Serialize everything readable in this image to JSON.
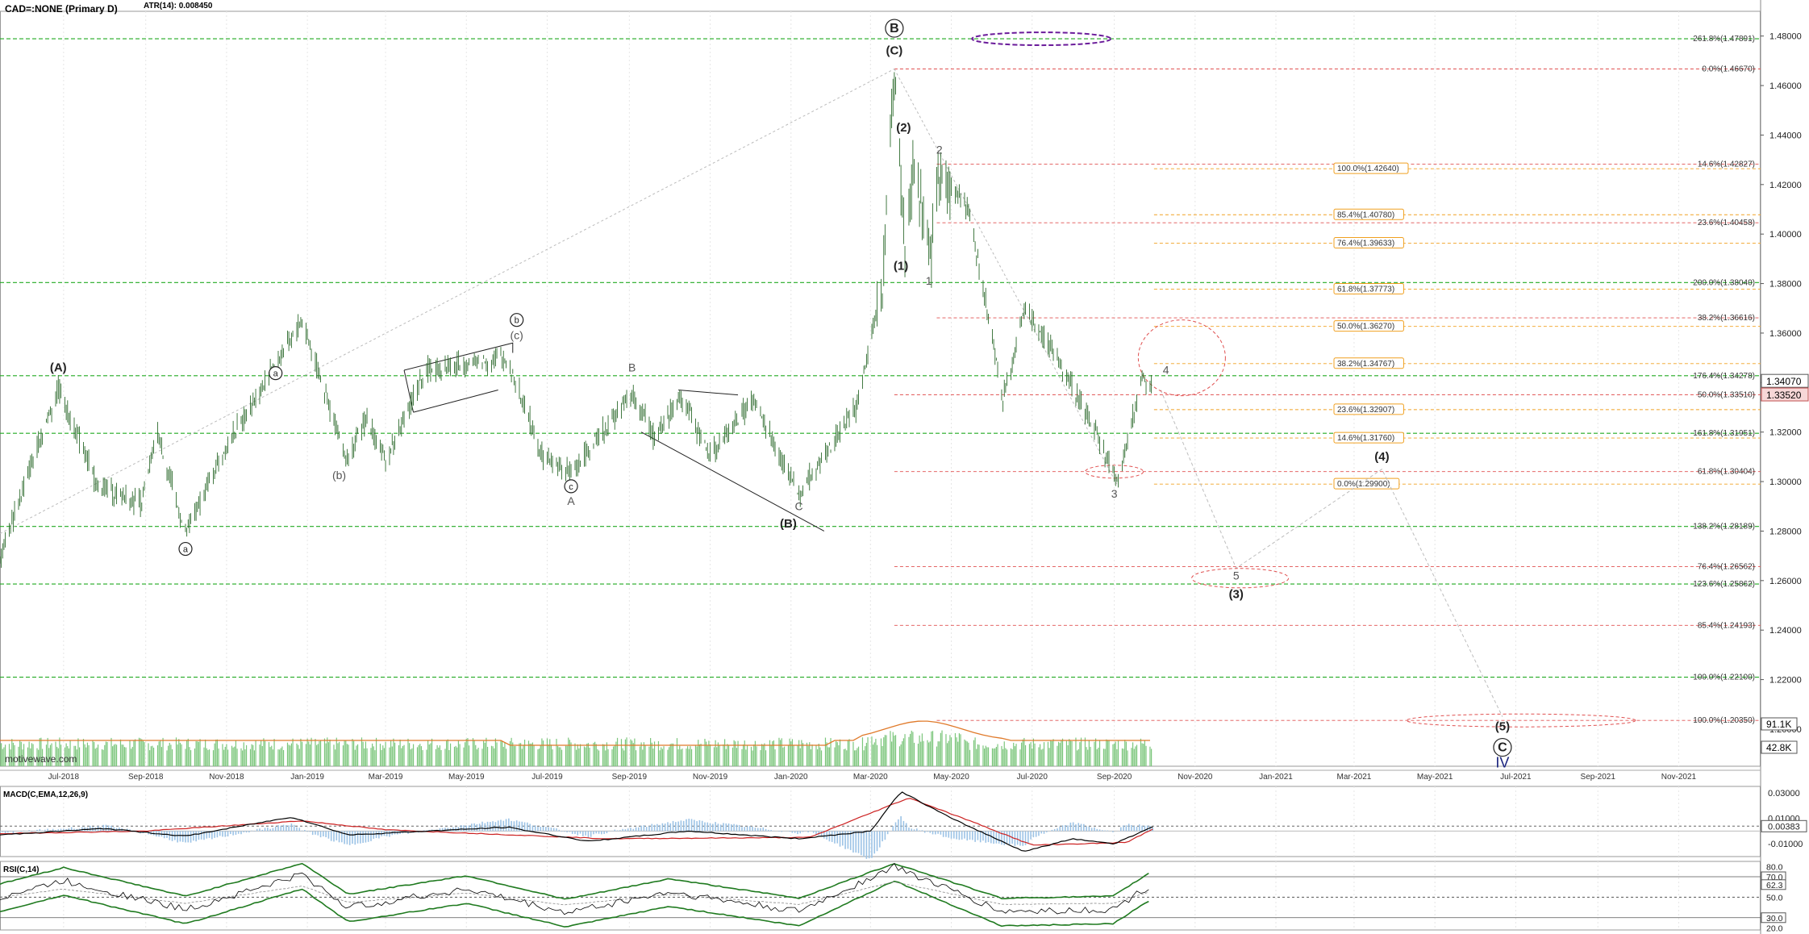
{
  "header": {
    "title": "CAD=:NONE (Primary D)",
    "atr_label": "ATR(14): 0.008450"
  },
  "watermark": "motivewave.com",
  "colors": {
    "candle": "#2e6b2e",
    "green_level": "#22aa22",
    "red_level": "#e05050",
    "orange_level": "#f0a020",
    "volume_bar": "#7cc67c",
    "volume_ma": "#e07a2a",
    "macd_line": "#000000",
    "signal_line": "#cc2222",
    "histogram": "#9cc3e6",
    "rsi_band": "#1f7a1f",
    "wave_c_label": "#1a237e"
  },
  "chart_data": [
    {
      "type": "candlestick",
      "title": "CAD=:NONE (Primary D)",
      "y_axis_ticks": [
        "1.48000",
        "1.46000",
        "1.44000",
        "1.42000",
        "1.40000",
        "1.38000",
        "1.36000",
        "1.34000",
        "1.32000",
        "1.30000",
        "1.28000",
        "1.26000",
        "1.24000",
        "1.22000",
        "1.20000"
      ],
      "x_axis_ticks": [
        "Jul-2018",
        "Sep-2018",
        "Nov-2018",
        "Jan-2019",
        "Mar-2019",
        "May-2019",
        "Jul-2019",
        "Sep-2019",
        "Nov-2019",
        "Jan-2020",
        "Mar-2020",
        "May-2020",
        "Jul-2020",
        "Sep-2020",
        "Nov-2020",
        "Jan-2021",
        "Mar-2021",
        "May-2021",
        "Jul-2021",
        "Sep-2021",
        "Nov-2021"
      ],
      "ylim": [
        1.185,
        1.49
      ],
      "x_range": [
        "2018-05-14",
        "2021-12-31"
      ],
      "price_path": [
        {
          "date": "2018-05-14",
          "price": 1.27
        },
        {
          "date": "2018-06-27",
          "price": 1.338
        },
        {
          "date": "2018-07-27",
          "price": 1.298
        },
        {
          "date": "2018-08-29",
          "price": 1.291
        },
        {
          "date": "2018-09-10",
          "price": 1.32
        },
        {
          "date": "2018-10-01",
          "price": 1.278
        },
        {
          "date": "2018-10-25",
          "price": 1.308
        },
        {
          "date": "2018-12-28",
          "price": 1.365
        },
        {
          "date": "2019-01-31",
          "price": 1.308
        },
        {
          "date": "2019-02-15",
          "price": 1.326
        },
        {
          "date": "2019-03-01",
          "price": 1.308
        },
        {
          "date": "2019-03-31",
          "price": 1.345
        },
        {
          "date": "2019-05-31",
          "price": 1.35
        },
        {
          "date": "2019-06-28",
          "price": 1.31
        },
        {
          "date": "2019-07-19",
          "price": 1.303
        },
        {
          "date": "2019-09-03",
          "price": 1.336
        },
        {
          "date": "2019-09-20",
          "price": 1.318
        },
        {
          "date": "2019-10-10",
          "price": 1.335
        },
        {
          "date": "2019-11-01",
          "price": 1.31
        },
        {
          "date": "2019-12-03",
          "price": 1.333
        },
        {
          "date": "2020-01-07",
          "price": 1.295
        },
        {
          "date": "2020-02-19",
          "price": 1.33
        },
        {
          "date": "2020-03-10",
          "price": 1.38
        },
        {
          "date": "2020-03-19",
          "price": 1.467
        },
        {
          "date": "2020-03-27",
          "price": 1.392
        },
        {
          "date": "2020-04-03",
          "price": 1.43
        },
        {
          "date": "2020-04-15",
          "price": 1.386
        },
        {
          "date": "2020-04-21",
          "price": 1.425
        },
        {
          "date": "2020-05-14",
          "price": 1.41
        },
        {
          "date": "2020-06-09",
          "price": 1.334
        },
        {
          "date": "2020-06-26",
          "price": 1.37
        },
        {
          "date": "2020-07-31",
          "price": 1.34
        },
        {
          "date": "2020-08-31",
          "price": 1.304
        },
        {
          "date": "2020-09-03",
          "price": 1.299
        },
        {
          "date": "2020-09-22",
          "price": 1.342
        },
        {
          "date": "2020-09-29",
          "price": 1.338
        }
      ],
      "projection_path": [
        {
          "date": "2020-10-06",
          "price": 1.337
        },
        {
          "date": "2020-12-02",
          "price": 1.265
        },
        {
          "date": "2021-03-22",
          "price": 1.305
        },
        {
          "date": "2021-06-21",
          "price": 1.205
        }
      ],
      "last_price_labels": [
        "1.34070",
        "1.33520"
      ]
    },
    {
      "type": "bar",
      "title": "Volume",
      "y_axis_ticks": [
        "91.1K",
        "42.8K"
      ]
    },
    {
      "type": "line",
      "title": "MACD(C,EMA,12,26,9)",
      "ylim": [
        -0.02,
        0.035
      ],
      "y_axis_ticks": [
        "0.03000",
        "0.01000",
        "0.00383",
        "-0.01000"
      ],
      "series": [
        {
          "name": "MACD",
          "points": [
            {
              "date": "2018-05-14",
              "value": -0.003
            },
            {
              "date": "2018-08-01",
              "value": 0.002
            },
            {
              "date": "2018-10-01",
              "value": -0.004
            },
            {
              "date": "2018-12-20",
              "value": 0.011
            },
            {
              "date": "2019-02-01",
              "value": -0.003
            },
            {
              "date": "2019-06-01",
              "value": 0.003
            },
            {
              "date": "2019-08-01",
              "value": -0.008
            },
            {
              "date": "2019-10-15",
              "value": 0.0
            },
            {
              "date": "2020-01-07",
              "value": -0.006
            },
            {
              "date": "2020-03-01",
              "value": 0.0
            },
            {
              "date": "2020-03-24",
              "value": 0.031
            },
            {
              "date": "2020-05-01",
              "value": 0.01
            },
            {
              "date": "2020-06-25",
              "value": -0.016
            },
            {
              "date": "2020-08-01",
              "value": -0.006
            },
            {
              "date": "2020-09-01",
              "value": -0.01
            },
            {
              "date": "2020-10-01",
              "value": 0.004
            }
          ]
        },
        {
          "name": "Signal",
          "points": [
            {
              "date": "2018-05-14",
              "value": -0.002
            },
            {
              "date": "2018-09-01",
              "value": 0.0
            },
            {
              "date": "2018-12-28",
              "value": 0.008
            },
            {
              "date": "2019-03-01",
              "value": 0.001
            },
            {
              "date": "2019-08-15",
              "value": -0.006
            },
            {
              "date": "2020-01-15",
              "value": -0.005
            },
            {
              "date": "2020-03-30",
              "value": 0.026
            },
            {
              "date": "2020-05-15",
              "value": 0.008
            },
            {
              "date": "2020-07-01",
              "value": -0.011
            },
            {
              "date": "2020-09-10",
              "value": -0.009
            },
            {
              "date": "2020-10-01",
              "value": 0.002
            }
          ]
        }
      ]
    },
    {
      "type": "line",
      "title": "RSI(C,14)",
      "ylim": [
        18,
        85
      ],
      "y_axis_ticks": [
        "80.0",
        "70.0",
        "62.3",
        "50.0",
        "30.0",
        "20.0"
      ],
      "series": [
        {
          "name": "RSI",
          "points": [
            {
              "date": "2018-05-14",
              "value": 50
            },
            {
              "date": "2018-07-01",
              "value": 66
            },
            {
              "date": "2018-10-01",
              "value": 38
            },
            {
              "date": "2018-12-28",
              "value": 72
            },
            {
              "date": "2019-02-01",
              "value": 40
            },
            {
              "date": "2019-05-01",
              "value": 58
            },
            {
              "date": "2019-07-15",
              "value": 35
            },
            {
              "date": "2019-10-01",
              "value": 55
            },
            {
              "date": "2020-01-07",
              "value": 36
            },
            {
              "date": "2020-03-19",
              "value": 80
            },
            {
              "date": "2020-06-08",
              "value": 36
            },
            {
              "date": "2020-08-31",
              "value": 38
            },
            {
              "date": "2020-09-29",
              "value": 62
            }
          ]
        }
      ]
    }
  ],
  "levels": [
    {
      "label": "261.8%(1.47891)",
      "price": 1.47891,
      "color": "green",
      "x_start": "2018-05-14"
    },
    {
      "label": "0.0%(1.46670)",
      "price": 1.4667,
      "color": "red",
      "x_start": "2020-03-19"
    },
    {
      "label": "14.6%(1.42827)",
      "price": 1.42827,
      "color": "red",
      "x_start": "2020-04-20"
    },
    {
      "label": "23.6%(1.40458)",
      "price": 1.40458,
      "color": "red",
      "x_start": "2020-04-20"
    },
    {
      "label": "200.0%(1.38040)",
      "price": 1.3804,
      "color": "green",
      "x_start": "2018-05-14"
    },
    {
      "label": "38.2%(1.36616)",
      "price": 1.36616,
      "color": "red",
      "x_start": "2020-04-20"
    },
    {
      "label": "176.4%(1.34278)",
      "price": 1.34278,
      "color": "green",
      "x_start": "2018-05-14"
    },
    {
      "label": "50.0%(1.33510)",
      "price": 1.3351,
      "color": "red",
      "x_start": "2020-03-19"
    },
    {
      "label": "161.8%(1.31951)",
      "price": 1.31951,
      "color": "green",
      "x_start": "2018-05-14"
    },
    {
      "label": "61.8%(1.30404)",
      "price": 1.30404,
      "color": "red",
      "x_start": "2020-03-19"
    },
    {
      "label": "138.2%(1.28189)",
      "price": 1.28189,
      "color": "green",
      "x_start": "2018-05-14"
    },
    {
      "label": "76.4%(1.26562)",
      "price": 1.26562,
      "color": "red",
      "x_start": "2020-03-19"
    },
    {
      "label": "123.6%(1.25862)",
      "price": 1.25862,
      "color": "green",
      "x_start": "2018-05-14"
    },
    {
      "label": "85.4%(1.24193)",
      "price": 1.24193,
      "color": "red",
      "x_start": "2020-03-19"
    },
    {
      "label": "100.0%(1.22100)",
      "price": 1.221,
      "color": "green",
      "x_start": "2018-05-14"
    },
    {
      "label": "100.0%(1.20350)",
      "price": 1.2035,
      "color": "red",
      "x_start": "2020-04-20"
    }
  ],
  "boxed_levels": [
    {
      "label": "100.0%(1.42640)",
      "price": 1.4264,
      "color": "orange"
    },
    {
      "label": "85.4%(1.40780)",
      "price": 1.4078,
      "color": "orange"
    },
    {
      "label": "76.4%(1.39633)",
      "price": 1.39633,
      "color": "orange"
    },
    {
      "label": "61.8%(1.37773)",
      "price": 1.37773,
      "color": "orange"
    },
    {
      "label": "50.0%(1.36270)",
      "price": 1.3627,
      "color": "orange"
    },
    {
      "label": "38.2%(1.34767)",
      "price": 1.34767,
      "color": "orange"
    },
    {
      "label": "23.6%(1.32907)",
      "price": 1.32907,
      "color": "orange"
    },
    {
      "label": "14.6%(1.31760)",
      "price": 1.3176,
      "color": "orange"
    },
    {
      "label": "0.0%(1.29900)",
      "price": 1.299,
      "color": "orange"
    }
  ],
  "wave_labels": [
    {
      "text": "(A)",
      "date": "2018-06-27",
      "price": 1.3445,
      "style": "bold"
    },
    {
      "text": "a",
      "date": "2018-10-01",
      "price": 1.2715,
      "style": "circled"
    },
    {
      "text": "a",
      "date": "2018-12-08",
      "price": 1.3425,
      "style": "circled"
    },
    {
      "text": "(b)",
      "date": "2019-01-25",
      "price": 1.301,
      "style": "plain"
    },
    {
      "text": "b",
      "date": "2019-06-08",
      "price": 1.364,
      "style": "circled"
    },
    {
      "text": "(c)",
      "date": "2019-06-08",
      "price": 1.3575,
      "style": "plain"
    },
    {
      "text": "c",
      "date": "2019-07-19",
      "price": 1.2968,
      "style": "circled"
    },
    {
      "text": "A",
      "date": "2019-07-19",
      "price": 1.2905,
      "style": "plain"
    },
    {
      "text": "B",
      "date": "2019-09-03",
      "price": 1.3445,
      "style": "plain"
    },
    {
      "text": "C",
      "date": "2020-01-07",
      "price": 1.2885,
      "style": "plain"
    },
    {
      "text": "(B)",
      "date": "2019-12-30",
      "price": 1.2815,
      "style": "bold"
    },
    {
      "text": "B",
      "date": "2020-03-19",
      "price": 1.4815,
      "style": "circled"
    },
    {
      "text": "(C)",
      "date": "2020-03-19",
      "price": 1.4725,
      "style": "bold"
    },
    {
      "text": "(2)",
      "date": "2020-03-26",
      "price": 1.4415,
      "style": "bold"
    },
    {
      "text": "2",
      "date": "2020-04-22",
      "price": 1.4325,
      "style": "plain"
    },
    {
      "text": "(1)",
      "date": "2020-03-24",
      "price": 1.3855,
      "style": "bold"
    },
    {
      "text": "1",
      "date": "2020-04-14",
      "price": 1.3795,
      "style": "plain"
    },
    {
      "text": "4",
      "date": "2020-10-10",
      "price": 1.3435,
      "style": "plain"
    },
    {
      "text": "3",
      "date": "2020-09-01",
      "price": 1.2935,
      "style": "plain"
    },
    {
      "text": "5",
      "date": "2020-12-02",
      "price": 1.2605,
      "style": "plain"
    },
    {
      "text": "(3)",
      "date": "2020-12-02",
      "price": 1.253,
      "style": "bold"
    },
    {
      "text": "(4)",
      "date": "2021-03-22",
      "price": 1.3085,
      "style": "bold"
    },
    {
      "text": "(5)",
      "date": "2021-06-21",
      "price": 1.1995,
      "style": "bold"
    },
    {
      "text": "C",
      "date": "2021-06-21",
      "price": 1.191,
      "style": "circled"
    },
    {
      "text": "IV",
      "date": "2021-06-21",
      "price": 1.1845,
      "style": "blue"
    }
  ]
}
